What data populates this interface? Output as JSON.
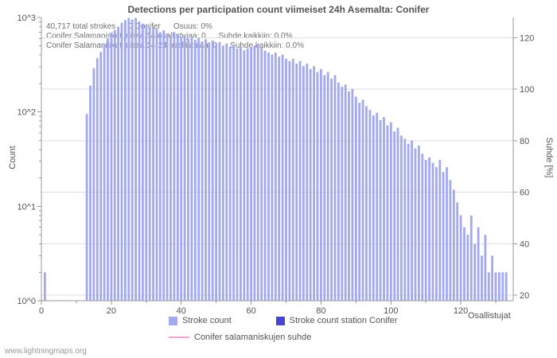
{
  "title": "Detections per participation count viimeiset 24h Asemalta: Conifer",
  "watermark": "www.lightningmaps.org",
  "annotations": {
    "line1": [
      "40,717 total strokes",
      "0 Conifer",
      "Osuus: 0%"
    ],
    "line2": [
      "Conifer Salamaniskut joissa 14 osallistujaa: 0",
      "Suhde kaikkiin: 0.0%"
    ],
    "line3": [
      "Conifer Salamaniskut joissa 14-24 osallistujaa: 0",
      "Suhde kaikkiin: 0.0%"
    ]
  },
  "axes": {
    "left_label": "Count",
    "right_label": "Suhde [%]",
    "x_label": "Osallistujat",
    "left_ticks": [
      "10^0",
      "10^1",
      "10^2",
      "10^3"
    ],
    "right_ticks": [
      20,
      40,
      60,
      80,
      100,
      120
    ],
    "x_ticks": [
      0,
      20,
      40,
      60,
      80,
      100,
      120
    ]
  },
  "legend": [
    {
      "label": "Stroke count",
      "color": "#a3a9ef",
      "type": "square"
    },
    {
      "label": "Stroke count station Conifer",
      "color": "#4747d1",
      "type": "square"
    },
    {
      "label": "Conifer salamaniskujen suhde",
      "color": "#f0a8d0",
      "type": "line"
    }
  ],
  "chart_data": {
    "type": "bar",
    "title": "Detections per participation count viimeiset 24h Asemalta: Conifer",
    "xlabel": "Osallistujat",
    "ylabel": "Count",
    "y2label": "Suhde [%]",
    "yscale": "log",
    "xlim": [
      0,
      135
    ],
    "ylim": [
      1,
      1000
    ],
    "y2lim": [
      18,
      128
    ],
    "grid": "horizontal",
    "legend_position": "bottom",
    "series": [
      {
        "name": "Stroke count",
        "color": "#a3a9ef",
        "axis": "y1",
        "points": [
          [
            1,
            2
          ],
          [
            13,
            95
          ],
          [
            14,
            190
          ],
          [
            15,
            290
          ],
          [
            16,
            370
          ],
          [
            17,
            430
          ],
          [
            18,
            520
          ],
          [
            19,
            600
          ],
          [
            20,
            690
          ],
          [
            21,
            740
          ],
          [
            22,
            800
          ],
          [
            23,
            880
          ],
          [
            24,
            940
          ],
          [
            25,
            990
          ],
          [
            26,
            950
          ],
          [
            27,
            990
          ],
          [
            28,
            910
          ],
          [
            29,
            860
          ],
          [
            30,
            820
          ],
          [
            31,
            780
          ],
          [
            32,
            810
          ],
          [
            33,
            760
          ],
          [
            34,
            700
          ],
          [
            35,
            730
          ],
          [
            36,
            680
          ],
          [
            37,
            650
          ],
          [
            38,
            700
          ],
          [
            39,
            660
          ],
          [
            40,
            620
          ],
          [
            41,
            650
          ],
          [
            42,
            600
          ],
          [
            43,
            630
          ],
          [
            44,
            580
          ],
          [
            45,
            610
          ],
          [
            46,
            560
          ],
          [
            47,
            590
          ],
          [
            48,
            545
          ],
          [
            49,
            570
          ],
          [
            50,
            525
          ],
          [
            51,
            550
          ],
          [
            52,
            505
          ],
          [
            53,
            530
          ],
          [
            54,
            490
          ],
          [
            55,
            515
          ],
          [
            56,
            470
          ],
          [
            57,
            490
          ],
          [
            58,
            450
          ],
          [
            59,
            470
          ],
          [
            60,
            490
          ],
          [
            61,
            505
          ],
          [
            62,
            525
          ],
          [
            63,
            480
          ],
          [
            64,
            445
          ],
          [
            65,
            425
          ],
          [
            66,
            405
          ],
          [
            67,
            425
          ],
          [
            68,
            385
          ],
          [
            69,
            405
          ],
          [
            70,
            365
          ],
          [
            71,
            345
          ],
          [
            72,
            365
          ],
          [
            73,
            325
          ],
          [
            74,
            345
          ],
          [
            75,
            305
          ],
          [
            76,
            325
          ],
          [
            77,
            285
          ],
          [
            78,
            305
          ],
          [
            79,
            265
          ],
          [
            80,
            285
          ],
          [
            81,
            245
          ],
          [
            82,
            265
          ],
          [
            83,
            225
          ],
          [
            84,
            245
          ],
          [
            85,
            205
          ],
          [
            86,
            185
          ],
          [
            87,
            195
          ],
          [
            88,
            165
          ],
          [
            89,
            175
          ],
          [
            90,
            145
          ],
          [
            91,
            125
          ],
          [
            92,
            135
          ],
          [
            93,
            115
          ],
          [
            94,
            105
          ],
          [
            95,
            92
          ],
          [
            96,
            98
          ],
          [
            97,
            82
          ],
          [
            98,
            88
          ],
          [
            99,
            72
          ],
          [
            100,
            78
          ],
          [
            101,
            62
          ],
          [
            102,
            68
          ],
          [
            103,
            56
          ],
          [
            104,
            52
          ],
          [
            105,
            46
          ],
          [
            106,
            50
          ],
          [
            107,
            41
          ],
          [
            108,
            44
          ],
          [
            109,
            36
          ],
          [
            110,
            31
          ],
          [
            111,
            33
          ],
          [
            112,
            29
          ],
          [
            113,
            26
          ],
          [
            114,
            31
          ],
          [
            115,
            23
          ],
          [
            116,
            26
          ],
          [
            117,
            19
          ],
          [
            118,
            15
          ],
          [
            119,
            11
          ],
          [
            120,
            8
          ],
          [
            121,
            6
          ],
          [
            122,
            5
          ],
          [
            123,
            8
          ],
          [
            124,
            4
          ],
          [
            125,
            6
          ],
          [
            126,
            3
          ],
          [
            127,
            5
          ],
          [
            128,
            2
          ],
          [
            129,
            3
          ],
          [
            130,
            2
          ],
          [
            131,
            2
          ],
          [
            132,
            2
          ],
          [
            133,
            2
          ]
        ]
      },
      {
        "name": "Stroke count station Conifer",
        "color": "#4747d1",
        "axis": "y1",
        "constant_value": 0
      },
      {
        "name": "Conifer salamaniskujen suhde",
        "color": "#f0a8d0",
        "axis": "y2",
        "constant_value": 0
      }
    ]
  }
}
